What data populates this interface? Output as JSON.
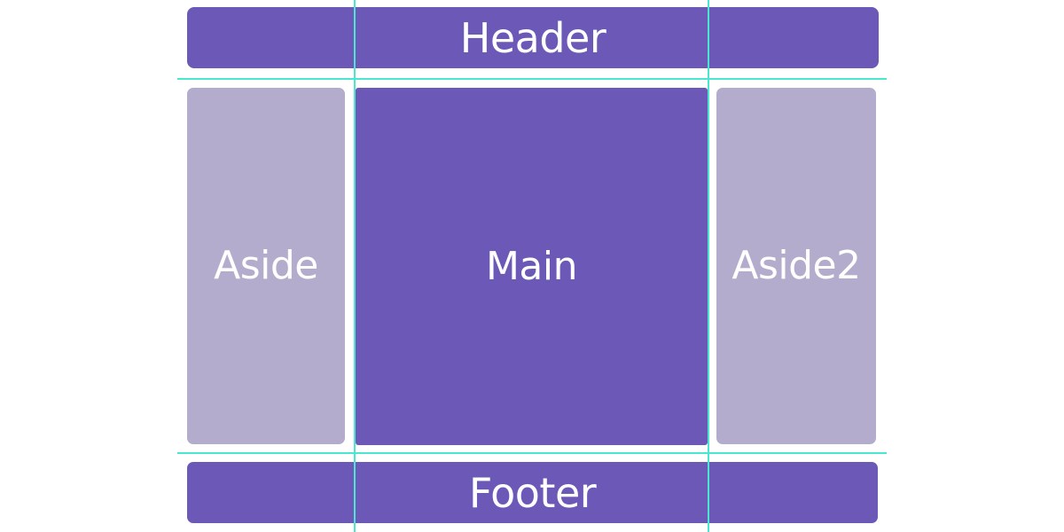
{
  "colors": {
    "primary": "#6c58b6",
    "secondary": "#b3accd",
    "guide": "#4be6d0",
    "text": "#ffffff"
  },
  "layout": {
    "header": "Header",
    "aside": "Aside",
    "main": "Main",
    "aside2": "Aside2",
    "footer": "Footer"
  }
}
